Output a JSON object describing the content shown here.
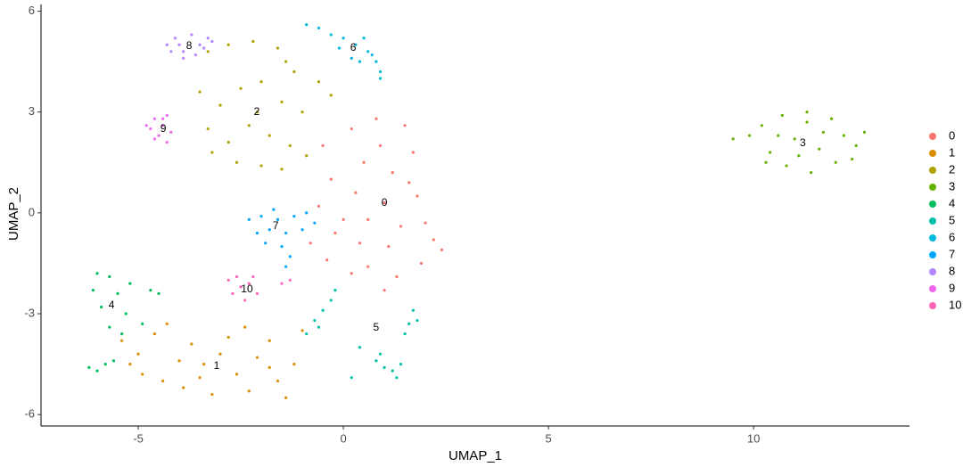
{
  "chart_data": {
    "type": "scatter",
    "x_label": "UMAP_1",
    "y_label": "UMAP_2",
    "xlim": [
      -7.37,
      13.8
    ],
    "ylim": [
      -6.34,
      6.2
    ],
    "xticks": [
      -5,
      0,
      5,
      10
    ],
    "yticks": [
      -6,
      -3,
      0,
      3,
      6
    ],
    "grid": false,
    "legend_position": "right",
    "series": [
      {
        "name": "0",
        "color": "#F8766D",
        "x": [
          0.2,
          0.8,
          1.5,
          1.7,
          0.5,
          1.2,
          -0.3,
          0.3,
          1.0,
          1.8,
          -0.6,
          0.6,
          1.4,
          2.2,
          2.4,
          1.9,
          1.1,
          0.4,
          -0.2,
          -0.8,
          0.6,
          1.3,
          0.2,
          -0.4,
          0.9,
          1.6,
          0.0,
          2.0,
          1.0,
          -0.5
        ],
        "y": [
          2.5,
          2.8,
          2.6,
          1.8,
          1.5,
          1.2,
          1.0,
          0.6,
          0.3,
          0.5,
          0.2,
          -0.2,
          -0.4,
          -0.8,
          -1.1,
          -1.5,
          -1.0,
          -0.9,
          -0.6,
          -0.9,
          -1.6,
          -1.9,
          -1.8,
          -1.4,
          2.0,
          0.9,
          -0.2,
          -0.3,
          -2.3,
          2.0
        ]
      },
      {
        "name": "1",
        "color": "#DB8E00",
        "x": [
          -5.4,
          -5.0,
          -4.6,
          -4.9,
          -4.4,
          -4.0,
          -3.7,
          -3.5,
          -3.2,
          -3.0,
          -2.8,
          -2.6,
          -2.3,
          -2.1,
          -1.8,
          -1.6,
          -1.4,
          -1.2,
          -1.0,
          -3.9,
          -4.3,
          -2.4,
          -3.4,
          -1.8,
          -5.2
        ],
        "y": [
          -3.8,
          -4.2,
          -3.6,
          -4.8,
          -5.0,
          -4.4,
          -3.9,
          -4.9,
          -5.4,
          -4.2,
          -3.7,
          -4.8,
          -5.3,
          -4.3,
          -3.8,
          -5.0,
          -5.5,
          -4.5,
          -3.5,
          -5.2,
          -3.3,
          -3.4,
          -4.5,
          -4.6,
          -4.5
        ]
      },
      {
        "name": "2",
        "color": "#AEA200",
        "x": [
          -3.3,
          -2.8,
          -2.2,
          -1.6,
          -1.2,
          -0.6,
          -0.3,
          -3.5,
          -3.0,
          -2.5,
          -2.0,
          -1.5,
          -1.0,
          -3.3,
          -2.8,
          -2.3,
          -1.8,
          -1.3,
          -0.9,
          -3.2,
          -2.6,
          -2.0,
          -1.5,
          -2.1,
          -1.4
        ],
        "y": [
          4.8,
          5.0,
          5.1,
          4.9,
          4.2,
          3.9,
          3.5,
          3.6,
          3.2,
          3.7,
          3.9,
          3.3,
          3.0,
          2.5,
          2.1,
          2.6,
          2.3,
          2.0,
          1.7,
          1.8,
          1.5,
          1.4,
          1.3,
          3.0,
          4.5
        ]
      },
      {
        "name": "3",
        "color": "#64B200",
        "x": [
          9.9,
          10.2,
          10.4,
          10.7,
          10.8,
          11.0,
          11.3,
          11.4,
          11.6,
          11.9,
          12.0,
          12.2,
          12.5,
          12.7,
          10.3,
          11.1,
          11.7,
          12.4,
          10.6,
          11.3,
          9.5
        ],
        "y": [
          2.3,
          2.6,
          1.8,
          2.9,
          1.4,
          2.2,
          2.7,
          1.2,
          1.9,
          2.8,
          1.5,
          2.3,
          2.0,
          2.4,
          1.5,
          1.7,
          2.4,
          1.6,
          2.3,
          3.0,
          2.2
        ]
      },
      {
        "name": "4",
        "color": "#00BD5C",
        "x": [
          -6.0,
          -5.7,
          -6.1,
          -5.5,
          -5.9,
          -5.3,
          -5.7,
          -5.4,
          -4.7,
          -4.5,
          -6.2,
          -6.0,
          -5.8,
          -5.6,
          -5.2,
          -4.9
        ],
        "y": [
          -1.8,
          -1.9,
          -2.3,
          -2.4,
          -2.8,
          -3.0,
          -3.4,
          -3.6,
          -2.3,
          -2.4,
          -4.6,
          -4.7,
          -4.5,
          -4.4,
          -2.1,
          -3.3
        ]
      },
      {
        "name": "5",
        "color": "#00C1A7",
        "x": [
          -0.9,
          -0.7,
          -0.5,
          -0.3,
          -0.6,
          -0.2,
          1.7,
          1.6,
          1.8,
          1.5,
          0.8,
          1.0,
          1.2,
          1.4,
          0.9,
          1.3,
          0.4,
          0.2
        ],
        "y": [
          -3.6,
          -3.2,
          -2.9,
          -2.6,
          -3.4,
          -2.3,
          -2.9,
          -3.3,
          -3.2,
          -3.6,
          -4.4,
          -4.6,
          -4.7,
          -4.5,
          -4.2,
          -4.9,
          -4.0,
          -4.9
        ]
      },
      {
        "name": "6",
        "color": "#00BADE",
        "x": [
          -0.9,
          -0.6,
          -0.3,
          0.0,
          0.3,
          0.5,
          0.6,
          0.8,
          0.9,
          0.9,
          0.4,
          -0.1,
          0.7,
          0.2
        ],
        "y": [
          5.6,
          5.5,
          5.3,
          5.2,
          5.0,
          5.2,
          4.8,
          4.5,
          4.2,
          4.0,
          4.5,
          4.9,
          4.7,
          4.6
        ]
      },
      {
        "name": "7",
        "color": "#00A6FF",
        "x": [
          -2.3,
          -2.0,
          -1.6,
          -1.2,
          -0.9,
          -2.1,
          -1.8,
          -1.4,
          -1.0,
          -1.9,
          -1.5,
          -1.3,
          -1.4,
          -0.7,
          -1.7
        ],
        "y": [
          -0.2,
          -0.1,
          -0.2,
          -0.1,
          0.0,
          -0.6,
          -0.5,
          -0.6,
          -0.5,
          -0.9,
          -1.0,
          -1.3,
          -1.6,
          -0.3,
          0.1
        ]
      },
      {
        "name": "8",
        "color": "#B385FF",
        "x": [
          -4.3,
          -4.1,
          -3.9,
          -3.7,
          -3.5,
          -3.3,
          -3.9,
          -4.2,
          -3.6,
          -3.4,
          -4.0,
          -3.2
        ],
        "y": [
          5.0,
          5.2,
          4.8,
          5.3,
          5.0,
          5.2,
          4.6,
          4.8,
          4.7,
          4.9,
          5.0,
          5.1
        ]
      },
      {
        "name": "9",
        "color": "#EF67EB",
        "x": [
          -4.8,
          -4.6,
          -4.5,
          -4.4,
          -4.3,
          -4.2,
          -4.6,
          -4.7,
          -4.3,
          -4.4
        ],
        "y": [
          2.6,
          2.8,
          2.3,
          2.6,
          2.9,
          2.4,
          2.2,
          2.5,
          2.1,
          2.8
        ]
      },
      {
        "name": "10",
        "color": "#FF63B6",
        "x": [
          -2.8,
          -2.6,
          -2.5,
          -2.3,
          -2.1,
          -2.7,
          -2.4,
          -2.2,
          -1.5,
          -1.3
        ],
        "y": [
          -2.0,
          -1.9,
          -2.2,
          -2.1,
          -2.4,
          -2.4,
          -2.6,
          -1.9,
          -2.1,
          -2.0
        ]
      }
    ],
    "annotations": [
      {
        "text": "0",
        "x": 1.0,
        "y": 0.29
      },
      {
        "text": "1",
        "x": -3.09,
        "y": -4.56
      },
      {
        "text": "2",
        "x": -2.11,
        "y": 3.0
      },
      {
        "text": "3",
        "x": 11.2,
        "y": 2.07
      },
      {
        "text": "4",
        "x": -5.65,
        "y": -2.76
      },
      {
        "text": "5",
        "x": 0.8,
        "y": -3.42
      },
      {
        "text": "6",
        "x": 0.24,
        "y": 4.91
      },
      {
        "text": "7",
        "x": -1.65,
        "y": -0.4
      },
      {
        "text": "8",
        "x": -3.76,
        "y": 4.96
      },
      {
        "text": "9",
        "x": -4.39,
        "y": 2.49
      },
      {
        "text": "10",
        "x": -2.35,
        "y": -2.28
      }
    ]
  }
}
